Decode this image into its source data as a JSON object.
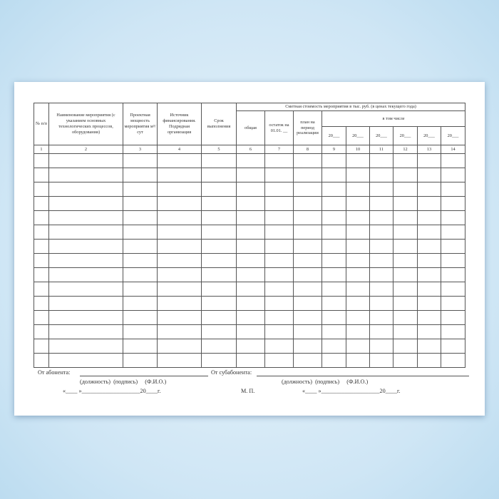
{
  "header": {
    "col1": "№ п/п",
    "col2": "Наименование мероприятия (с указанием основных технологических процессов, оборудования)",
    "col3": "Проектная мощность мероприятия м³/сут",
    "col4": "Источник финансирования. Подрядная организация",
    "col5": "Срок выполнения",
    "group": "Сметная стоимость мероприятия в тыс. руб. (в ценах текущего года)",
    "col6": "общая",
    "col7": "остаток на 01.01. __",
    "col8": "план на период реализации",
    "subgroup": "в том числе",
    "years": [
      "20___",
      "20___",
      "20___",
      "20___",
      "20___",
      "20___"
    ]
  },
  "column_numbers": [
    "1",
    "2",
    "3",
    "4",
    "5",
    "6",
    "7",
    "8",
    "9",
    "10",
    "11",
    "12",
    "13",
    "14"
  ],
  "empty_rows": 15,
  "signatures": {
    "subscriber_label": "От абонента:",
    "subsubscriber_label": "От субабонента:",
    "roles1": "(должность)  (подпись)     (Ф.И.О.)",
    "roles2": "(должность)  (подпись)     (Ф.И.О.)",
    "date1": "«____ »____________________20____г.",
    "date2": "«____ »____________________20____г.",
    "stamp": "М. П."
  }
}
